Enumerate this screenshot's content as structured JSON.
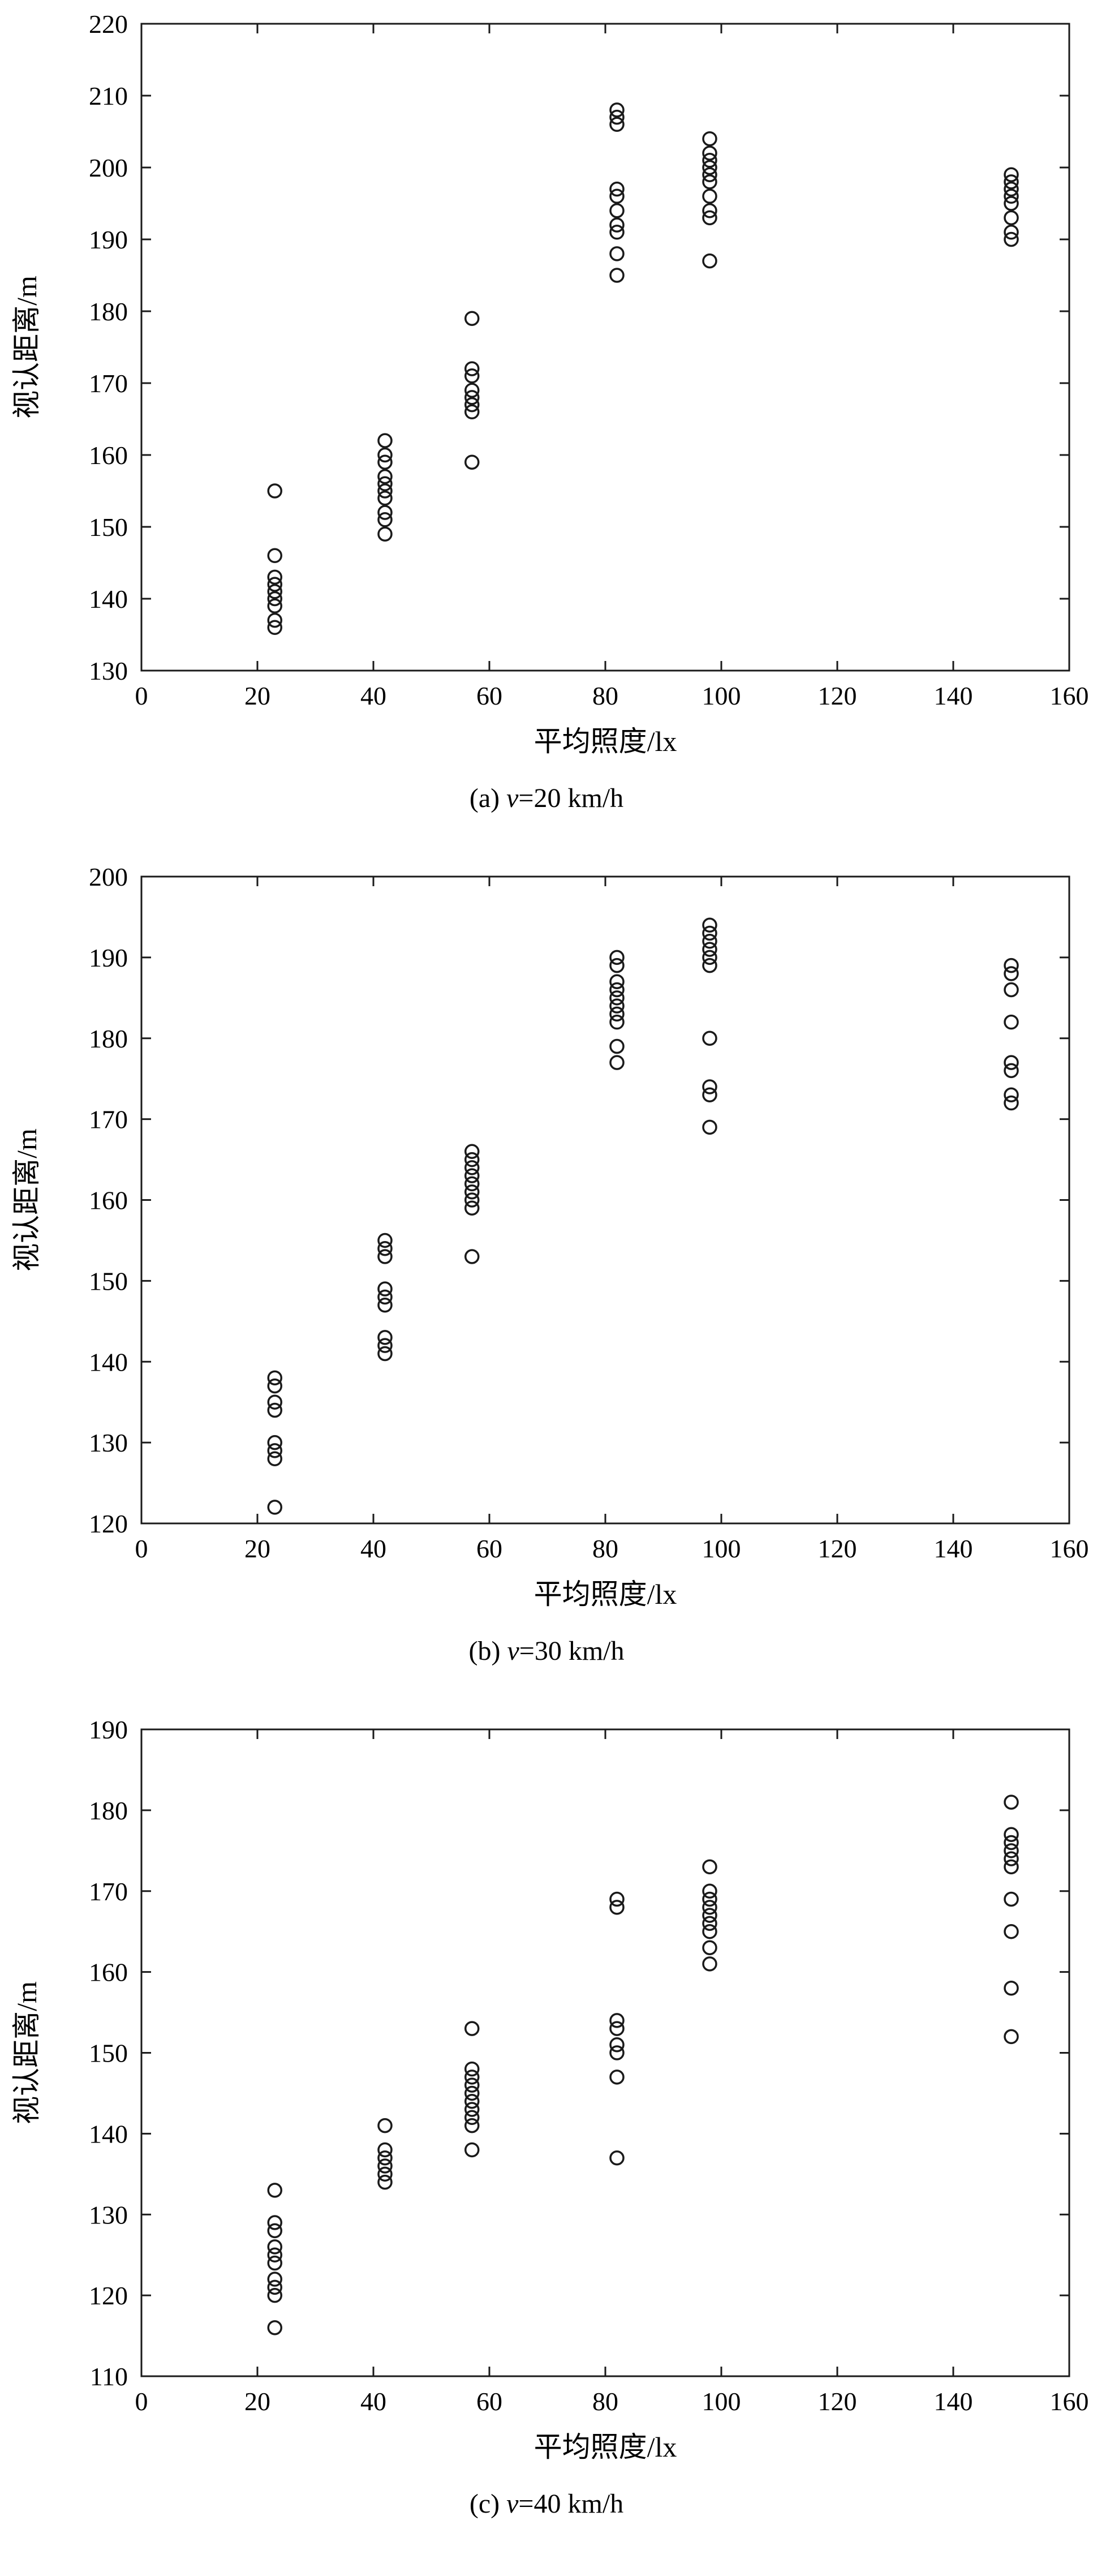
{
  "figure": {
    "ink": "#1a1a1a",
    "background": "#ffffff",
    "marker": "open-circle"
  },
  "chart_data": [
    {
      "type": "scatter",
      "title": "(a) v=20 km/h",
      "caption_prefix": "(a) ",
      "caption_var": "v",
      "caption_rest": "=20 km/h",
      "xlabel": "平均照度/lx",
      "ylabel": "视认距离/m",
      "xlim": [
        0,
        160
      ],
      "ylim": [
        130,
        220
      ],
      "xticks": [
        0,
        20,
        40,
        60,
        80,
        100,
        120,
        140,
        160
      ],
      "yticks": [
        130,
        140,
        150,
        160,
        170,
        180,
        190,
        200,
        210,
        220
      ],
      "grid": false,
      "legend": null,
      "points": [
        [
          23,
          155
        ],
        [
          23,
          146
        ],
        [
          23,
          143
        ],
        [
          23,
          142
        ],
        [
          23,
          141
        ],
        [
          23,
          140
        ],
        [
          23,
          139
        ],
        [
          23,
          137
        ],
        [
          23,
          136
        ],
        [
          42,
          162
        ],
        [
          42,
          160
        ],
        [
          42,
          159
        ],
        [
          42,
          157
        ],
        [
          42,
          156
        ],
        [
          42,
          155
        ],
        [
          42,
          154
        ],
        [
          42,
          152
        ],
        [
          42,
          151
        ],
        [
          42,
          149
        ],
        [
          57,
          179
        ],
        [
          57,
          172
        ],
        [
          57,
          171
        ],
        [
          57,
          169
        ],
        [
          57,
          168
        ],
        [
          57,
          167
        ],
        [
          57,
          166
        ],
        [
          57,
          159
        ],
        [
          82,
          208
        ],
        [
          82,
          207
        ],
        [
          82,
          206
        ],
        [
          82,
          197
        ],
        [
          82,
          196
        ],
        [
          82,
          194
        ],
        [
          82,
          192
        ],
        [
          82,
          191
        ],
        [
          82,
          188
        ],
        [
          82,
          185
        ],
        [
          98,
          204
        ],
        [
          98,
          202
        ],
        [
          98,
          201
        ],
        [
          98,
          200
        ],
        [
          98,
          199
        ],
        [
          98,
          198
        ],
        [
          98,
          196
        ],
        [
          98,
          194
        ],
        [
          98,
          193
        ],
        [
          98,
          187
        ],
        [
          150,
          199
        ],
        [
          150,
          198
        ],
        [
          150,
          197
        ],
        [
          150,
          196
        ],
        [
          150,
          195
        ],
        [
          150,
          193
        ],
        [
          150,
          191
        ],
        [
          150,
          190
        ]
      ]
    },
    {
      "type": "scatter",
      "title": "(b) v=30 km/h",
      "caption_prefix": "(b) ",
      "caption_var": "v",
      "caption_rest": "=30 km/h",
      "xlabel": "平均照度/lx",
      "ylabel": "视认距离/m",
      "xlim": [
        0,
        160
      ],
      "ylim": [
        120,
        200
      ],
      "xticks": [
        0,
        20,
        40,
        60,
        80,
        100,
        120,
        140,
        160
      ],
      "yticks": [
        120,
        130,
        140,
        150,
        160,
        170,
        180,
        190,
        200
      ],
      "grid": false,
      "legend": null,
      "points": [
        [
          23,
          138
        ],
        [
          23,
          137
        ],
        [
          23,
          135
        ],
        [
          23,
          134
        ],
        [
          23,
          130
        ],
        [
          23,
          129
        ],
        [
          23,
          128
        ],
        [
          23,
          122
        ],
        [
          42,
          155
        ],
        [
          42,
          154
        ],
        [
          42,
          153
        ],
        [
          42,
          149
        ],
        [
          42,
          148
        ],
        [
          42,
          147
        ],
        [
          42,
          143
        ],
        [
          42,
          142
        ],
        [
          42,
          141
        ],
        [
          57,
          166
        ],
        [
          57,
          165
        ],
        [
          57,
          164
        ],
        [
          57,
          163
        ],
        [
          57,
          162
        ],
        [
          57,
          161
        ],
        [
          57,
          160
        ],
        [
          57,
          159
        ],
        [
          57,
          153
        ],
        [
          82,
          190
        ],
        [
          82,
          189
        ],
        [
          82,
          187
        ],
        [
          82,
          186
        ],
        [
          82,
          185
        ],
        [
          82,
          184
        ],
        [
          82,
          183
        ],
        [
          82,
          182
        ],
        [
          82,
          179
        ],
        [
          82,
          177
        ],
        [
          98,
          194
        ],
        [
          98,
          193
        ],
        [
          98,
          192
        ],
        [
          98,
          191
        ],
        [
          98,
          190
        ],
        [
          98,
          189
        ],
        [
          98,
          180
        ],
        [
          98,
          174
        ],
        [
          98,
          173
        ],
        [
          98,
          169
        ],
        [
          150,
          189
        ],
        [
          150,
          188
        ],
        [
          150,
          186
        ],
        [
          150,
          182
        ],
        [
          150,
          177
        ],
        [
          150,
          176
        ],
        [
          150,
          173
        ],
        [
          150,
          172
        ]
      ]
    },
    {
      "type": "scatter",
      "title": "(c) v=40 km/h",
      "caption_prefix": "(c) ",
      "caption_var": "v",
      "caption_rest": "=40 km/h",
      "xlabel": "平均照度/lx",
      "ylabel": "视认距离/m",
      "xlim": [
        0,
        160
      ],
      "ylim": [
        110,
        190
      ],
      "xticks": [
        0,
        20,
        40,
        60,
        80,
        100,
        120,
        140,
        160
      ],
      "yticks": [
        110,
        120,
        130,
        140,
        150,
        160,
        170,
        180,
        190
      ],
      "grid": false,
      "legend": null,
      "points": [
        [
          23,
          133
        ],
        [
          23,
          129
        ],
        [
          23,
          128
        ],
        [
          23,
          126
        ],
        [
          23,
          125
        ],
        [
          23,
          124
        ],
        [
          23,
          122
        ],
        [
          23,
          121
        ],
        [
          23,
          120
        ],
        [
          23,
          116
        ],
        [
          42,
          141
        ],
        [
          42,
          138
        ],
        [
          42,
          137
        ],
        [
          42,
          136
        ],
        [
          42,
          135
        ],
        [
          42,
          134
        ],
        [
          57,
          153
        ],
        [
          57,
          148
        ],
        [
          57,
          147
        ],
        [
          57,
          146
        ],
        [
          57,
          145
        ],
        [
          57,
          144
        ],
        [
          57,
          143
        ],
        [
          57,
          142
        ],
        [
          57,
          141
        ],
        [
          57,
          138
        ],
        [
          82,
          169
        ],
        [
          82,
          168
        ],
        [
          82,
          154
        ],
        [
          82,
          153
        ],
        [
          82,
          151
        ],
        [
          82,
          150
        ],
        [
          82,
          147
        ],
        [
          82,
          137
        ],
        [
          98,
          173
        ],
        [
          98,
          170
        ],
        [
          98,
          169
        ],
        [
          98,
          168
        ],
        [
          98,
          167
        ],
        [
          98,
          166
        ],
        [
          98,
          165
        ],
        [
          98,
          163
        ],
        [
          98,
          161
        ],
        [
          150,
          181
        ],
        [
          150,
          177
        ],
        [
          150,
          176
        ],
        [
          150,
          175
        ],
        [
          150,
          174
        ],
        [
          150,
          173
        ],
        [
          150,
          169
        ],
        [
          150,
          165
        ],
        [
          150,
          158
        ],
        [
          150,
          152
        ]
      ]
    }
  ]
}
